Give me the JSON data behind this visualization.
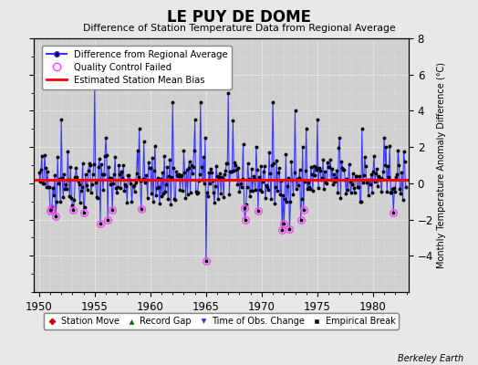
{
  "title": "LE PUY DE DOME",
  "subtitle": "Difference of Station Temperature Data from Regional Average",
  "ylabel_right": "Monthly Temperature Anomaly Difference (°C)",
  "xlim": [
    1949.5,
    1983.2
  ],
  "ylim": [
    -6,
    8
  ],
  "yticks_left": [
    -4,
    -2,
    0,
    2,
    4,
    6,
    8
  ],
  "yticks_right": [
    -4,
    -2,
    0,
    2,
    4,
    6,
    8
  ],
  "xticks": [
    1950,
    1955,
    1960,
    1965,
    1970,
    1975,
    1980
  ],
  "mean_bias": 0.2,
  "background_color": "#e8e8e8",
  "plot_bg_color": "#d0d0d0",
  "line_color": "#3333ff",
  "fill_color": "#aaaaff",
  "bias_color": "#ff0000",
  "marker_color": "#000000",
  "qc_color": "#ff44ff",
  "watermark": "Berkeley Earth",
  "seed": 42,
  "n_years_start": 1950,
  "n_years_end": 1983
}
